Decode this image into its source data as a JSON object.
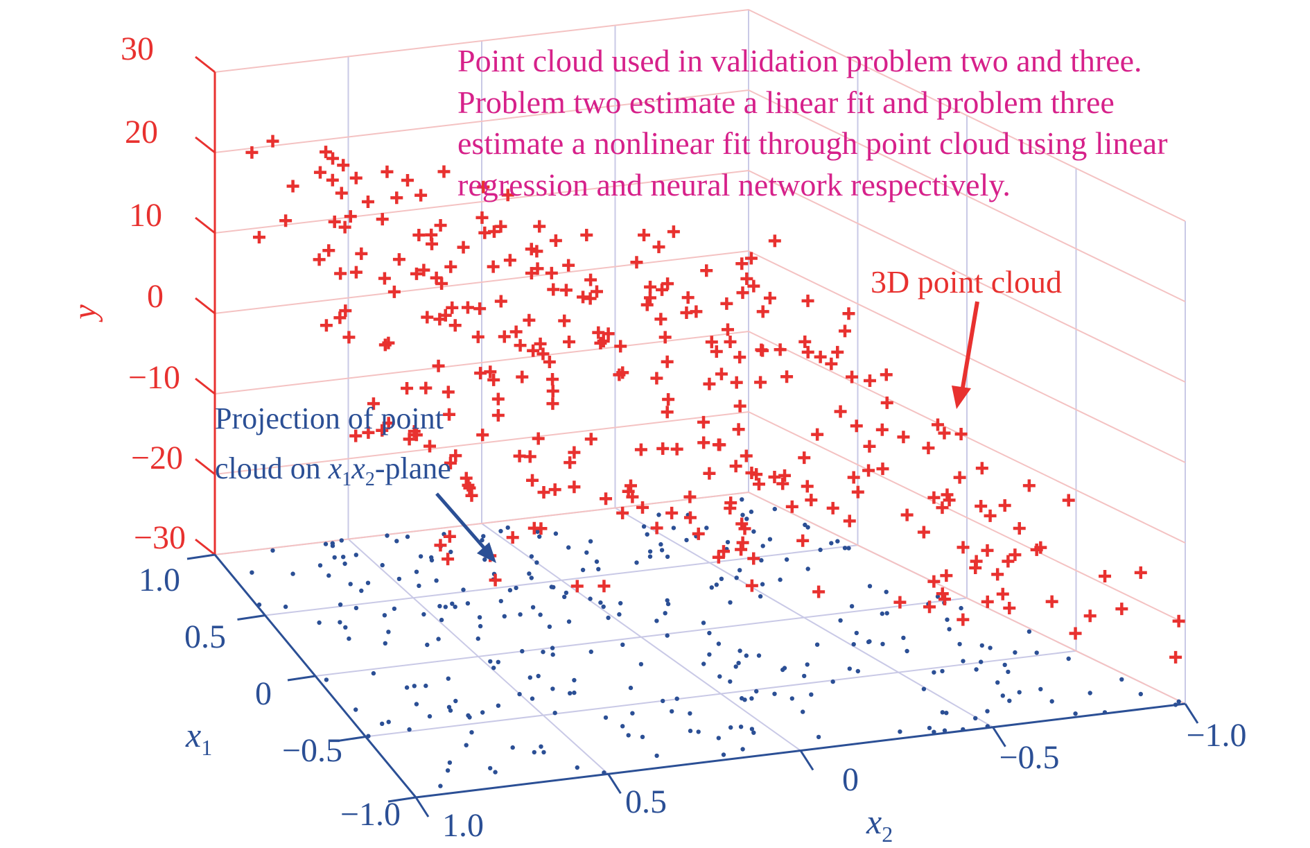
{
  "chart_data": {
    "type": "scatter",
    "projection": "3d",
    "title": "",
    "xlabel": "x1",
    "ylabel": "y",
    "zlabel": "x2",
    "axes": {
      "x1": {
        "range": [
          -1.0,
          1.0
        ],
        "ticks": [
          1.0,
          0.5,
          0,
          -0.5,
          -1.0
        ],
        "tick_labels": [
          "1.0",
          "0.5",
          "0",
          "−0.5",
          "−1.0"
        ],
        "label": "x",
        "label_sub": "1"
      },
      "x2": {
        "range": [
          -1.0,
          1.0
        ],
        "ticks": [
          1.0,
          0.5,
          0,
          -0.5,
          -1.0
        ],
        "tick_labels": [
          "1.0",
          "0.5",
          "0",
          "−0.5",
          "−1.0"
        ],
        "label": "x",
        "label_sub": "2"
      },
      "y": {
        "range": [
          -30,
          30
        ],
        "ticks": [
          30,
          20,
          10,
          0,
          -10,
          -20,
          -30
        ],
        "tick_labels": [
          "30",
          "20",
          "10",
          "0",
          "−10",
          "−20",
          "−30"
        ],
        "label": "y"
      }
    },
    "grid": true,
    "series": [
      {
        "name": "3D point cloud",
        "marker": "plus",
        "color": "#e8312f"
      },
      {
        "name": "Projection of point cloud on x1x2-plane",
        "marker": "dot",
        "color": "#2b4f95"
      }
    ],
    "num_points": 300,
    "model_note": "points lie near a plane descending from x1=1,x2=1 (y≈20) to x1=-1,x2=-1 (y≈-20)"
  },
  "annotations": {
    "description_lines": [
      "Point cloud used in validation problem two and three.",
      "Problem two estimate a linear fit and problem three",
      "estimate a nonlinear fit through point cloud using linear",
      "regression and neural network respectively."
    ],
    "cloud_label": "3D point cloud",
    "projection_label_line1": "Projection of point",
    "projection_label_line2_prefix": "cloud on ",
    "projection_label_line2_x": "x",
    "projection_label_line2_sub1": "1",
    "projection_label_line2_sub2": "2",
    "projection_label_line2_suffix": "-plane"
  },
  "colors": {
    "red": "#e8312f",
    "blue": "#2b4f95",
    "magenta": "#d6218a",
    "grid_floor": "#c9c9e6",
    "grid_back": "#f4c2c2"
  }
}
